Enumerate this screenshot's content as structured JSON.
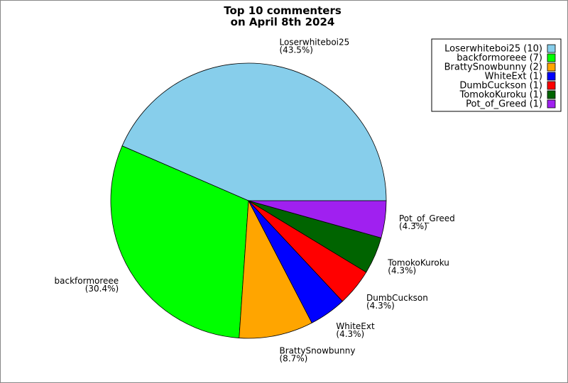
{
  "chart_data": {
    "type": "pie",
    "title_lines": [
      "Top 10 commenters",
      "on April 8th 2024"
    ],
    "slices": [
      {
        "name": "Loserwhiteboi25",
        "value": 10,
        "percent_label": "(43.5%)",
        "legend_label": "Loserwhiteboi25 (10)",
        "color": "#87ceeb"
      },
      {
        "name": "backformoreee",
        "value": 7,
        "percent_label": "(30.4%)",
        "legend_label": "backformoreee (7)",
        "color": "#00ff00"
      },
      {
        "name": "BrattySnowbunny",
        "value": 2,
        "percent_label": "(8.7%)",
        "legend_label": "BrattySnowbunny (2)",
        "color": "#ffa500"
      },
      {
        "name": "WhiteExt",
        "value": 1,
        "percent_label": "(4.3%)",
        "legend_label": "WhiteExt (1)",
        "color": "#0000ff"
      },
      {
        "name": "DumbCuckson",
        "value": 1,
        "percent_label": "(4.3%)",
        "legend_label": "DumbCuckson (1)",
        "color": "#ff0000"
      },
      {
        "name": "TomokoKuroku",
        "value": 1,
        "percent_label": "(4.3%)",
        "legend_label": "TomokoKuroku (1)",
        "color": "#006400"
      },
      {
        "name": "Pot_of_Greed",
        "value": 1,
        "percent_label": "(4.3%)",
        "legend_label": "Pot_of_Greed (1)",
        "color": "#a020f0"
      }
    ],
    "legend_position": "top-right",
    "start_direction": "east",
    "direction": "counterclockwise"
  }
}
